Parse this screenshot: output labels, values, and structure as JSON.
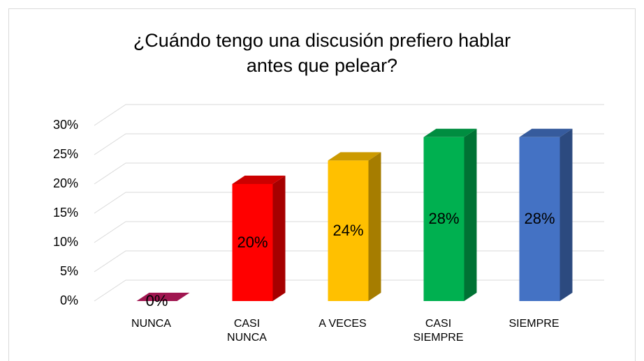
{
  "chart_data": {
    "type": "bar3d",
    "title": "¿Cuándo tengo una discusión prefiero hablar antes que pelear?",
    "categories": [
      "NUNCA",
      "CASI NUNCA",
      "A VECES",
      "CASI SIEMPRE",
      "SIEMPRE"
    ],
    "values": [
      0,
      20,
      24,
      28,
      28
    ],
    "value_labels": [
      "0%",
      "20%",
      "24%",
      "28%",
      "28%"
    ],
    "colors": [
      "#c81c64",
      "#ff0000",
      "#ffc000",
      "#00b050",
      "#4472c4"
    ],
    "ylim": [
      0,
      30
    ],
    "yticks": [
      {
        "value": 0,
        "label": "0%"
      },
      {
        "value": 5,
        "label": "5%"
      },
      {
        "value": 10,
        "label": "10%"
      },
      {
        "value": 15,
        "label": "15%"
      },
      {
        "value": 20,
        "label": "20%"
      },
      {
        "value": 25,
        "label": "25%"
      },
      {
        "value": 30,
        "label": "30%"
      }
    ],
    "grid": true
  }
}
